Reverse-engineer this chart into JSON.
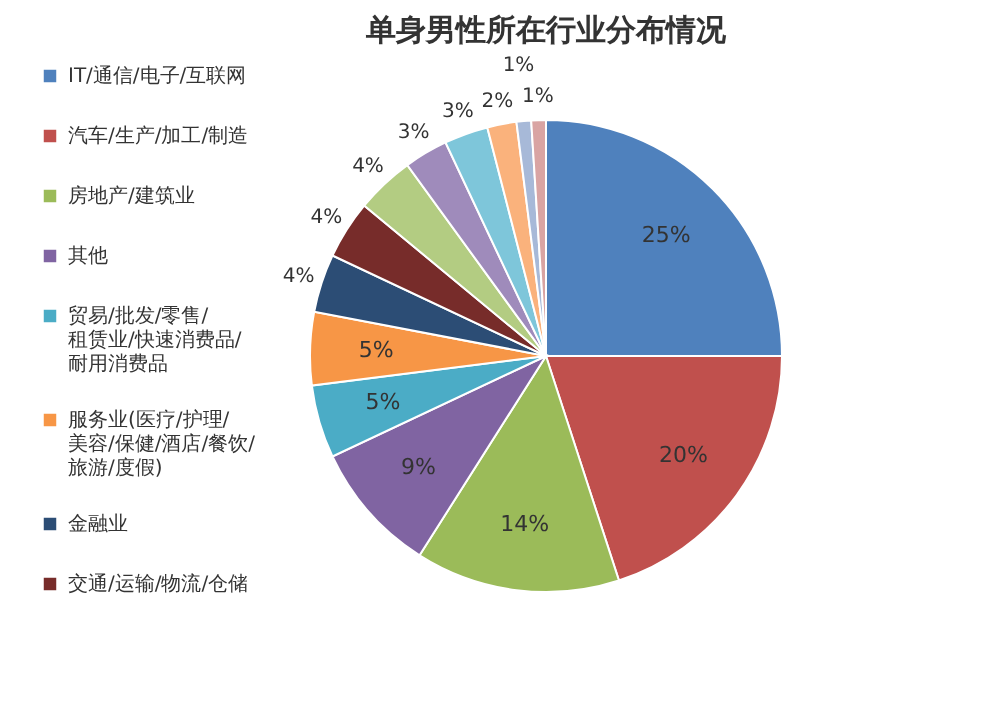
{
  "chart_data": {
    "type": "pie",
    "title": "单身男性所在行业分布情况",
    "categories": [
      "IT/通信/电子/互联网",
      "汽车/生产/加工/制造",
      "房地产/建筑业",
      "其他",
      "贸易/批发/零售/租赁业/快速消费品/耐用消费品",
      "服务业(医疗/护理/美容/保健/酒店/餐饮/旅游/度假)",
      "金融业",
      "交通/运输/物流/仓储",
      null,
      null,
      null,
      null,
      null,
      null
    ],
    "values": [
      25,
      20,
      14,
      9,
      5,
      5,
      4,
      4,
      4,
      3,
      3,
      2,
      1,
      1
    ],
    "value_labels": [
      "25%",
      "20%",
      "14%",
      "9%",
      "5%",
      "5%",
      "4%",
      "4%",
      "4%",
      "3%",
      "3%",
      "2%",
      "1%",
      "1%"
    ],
    "colors": [
      "#4f81bd",
      "#c0504d",
      "#9bbb59",
      "#8064a2",
      "#4bacc6",
      "#f79646",
      "#2c4d75",
      "#772c2a",
      "#b3cc82",
      "#9f8bbb",
      "#7ec6da",
      "#fab27c",
      "#a7b9d8",
      "#d9a4a3"
    ],
    "legend": "left"
  }
}
